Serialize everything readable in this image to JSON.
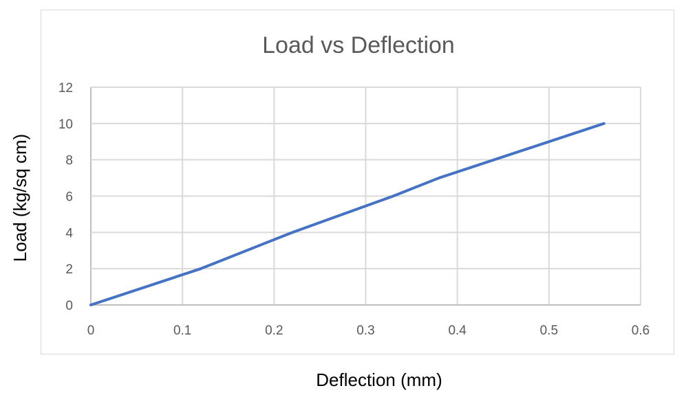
{
  "chart_data": {
    "type": "line",
    "title": "Load vs Deflection",
    "xlabel": "Deflection (mm)",
    "ylabel": "Load (kg/sq cm)",
    "xlim": [
      0,
      0.6
    ],
    "ylim": [
      0,
      12
    ],
    "xticks": [
      "0",
      "0.1",
      "0.2",
      "0.3",
      "0.4",
      "0.5",
      "0.6"
    ],
    "yticks": [
      "0",
      "2",
      "4",
      "6",
      "8",
      "10",
      "12"
    ],
    "grid": true,
    "legend": "none",
    "series": [
      {
        "color": "#4472c4",
        "x": [
          0,
          0.12,
          0.22,
          0.33,
          0.38,
          0.56
        ],
        "y": [
          0,
          2,
          4,
          6,
          7,
          10
        ]
      }
    ]
  }
}
